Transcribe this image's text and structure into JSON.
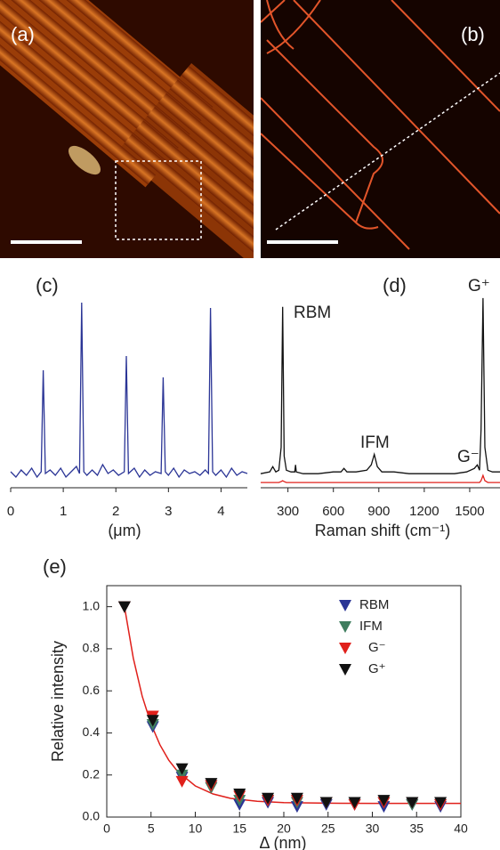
{
  "images": [
    {
      "label": "(a)"
    },
    {
      "label": "(b)"
    }
  ],
  "chart_data": [
    {
      "type": "line",
      "panel": "(c)",
      "xlabel": "(μm)",
      "xlim": [
        0,
        4.5
      ],
      "xticks": [
        0,
        1,
        2,
        3,
        4
      ],
      "ylim": [
        0,
        1.05
      ],
      "x": [
        0,
        0.1,
        0.2,
        0.3,
        0.4,
        0.5,
        0.58,
        0.62,
        0.66,
        0.75,
        0.85,
        0.95,
        1.05,
        1.15,
        1.25,
        1.31,
        1.35,
        1.39,
        1.45,
        1.55,
        1.65,
        1.75,
        1.85,
        1.95,
        2.05,
        2.16,
        2.2,
        2.24,
        2.35,
        2.45,
        2.55,
        2.65,
        2.75,
        2.86,
        2.9,
        2.94,
        3.0,
        3.1,
        3.2,
        3.3,
        3.4,
        3.5,
        3.6,
        3.7,
        3.76,
        3.8,
        3.84,
        3.9,
        4.0,
        4.1,
        4.2,
        4.3,
        4.4,
        4.5
      ],
      "series": [
        {
          "color": "#2b3596",
          "values": [
            0.05,
            0.02,
            0.06,
            0.03,
            0.07,
            0.02,
            0.05,
            0.62,
            0.04,
            0.06,
            0.03,
            0.07,
            0.02,
            0.05,
            0.08,
            0.04,
            1.0,
            0.05,
            0.03,
            0.06,
            0.03,
            0.09,
            0.04,
            0.06,
            0.03,
            0.05,
            0.7,
            0.04,
            0.07,
            0.02,
            0.06,
            0.03,
            0.05,
            0.04,
            0.58,
            0.05,
            0.03,
            0.07,
            0.02,
            0.06,
            0.04,
            0.05,
            0.03,
            0.06,
            0.04,
            0.97,
            0.05,
            0.03,
            0.06,
            0.02,
            0.07,
            0.03,
            0.05,
            0.04
          ]
        }
      ]
    },
    {
      "type": "line",
      "panel": "(d)",
      "xlabel": "Raman shift (cm⁻¹)",
      "xlim": [
        120,
        1700
      ],
      "xticks": [
        300,
        600,
        900,
        1200,
        1500
      ],
      "ylim": [
        -0.03,
        1.1
      ],
      "annotations": [
        "RBM",
        "IFM",
        "G⁻",
        "G⁺"
      ],
      "x": [
        120,
        180,
        200,
        220,
        240,
        255,
        265,
        275,
        290,
        320,
        345,
        350,
        355,
        400,
        500,
        600,
        650,
        670,
        690,
        750,
        820,
        850,
        870,
        890,
        920,
        1000,
        1100,
        1200,
        1300,
        1400,
        1480,
        1530,
        1550,
        1565,
        1575,
        1588,
        1600,
        1620,
        1650,
        1700
      ],
      "series": [
        {
          "color": "#111111",
          "values": [
            0.05,
            0.06,
            0.09,
            0.06,
            0.07,
            0.2,
            1.0,
            0.15,
            0.07,
            0.06,
            0.06,
            0.1,
            0.06,
            0.05,
            0.05,
            0.06,
            0.06,
            0.08,
            0.06,
            0.06,
            0.07,
            0.1,
            0.16,
            0.09,
            0.06,
            0.06,
            0.05,
            0.05,
            0.05,
            0.05,
            0.06,
            0.08,
            0.1,
            0.07,
            0.3,
            1.05,
            0.2,
            0.07,
            0.06,
            0.06
          ]
        },
        {
          "color": "#e0201b",
          "values": [
            0,
            0,
            0,
            0,
            0,
            0.005,
            0.01,
            0.005,
            0,
            0,
            0,
            0,
            0,
            0,
            0,
            0,
            0,
            0,
            0,
            0,
            0,
            0,
            0,
            0,
            0,
            0,
            0,
            0,
            0,
            0,
            0,
            0,
            0,
            0,
            0.01,
            0.04,
            0.01,
            0,
            0,
            0
          ]
        }
      ]
    },
    {
      "type": "scatter",
      "panel": "(e)",
      "xlabel": "Δ (nm)",
      "ylabel": "Relative intensity",
      "xlim": [
        0,
        40
      ],
      "xticks": [
        0,
        5,
        10,
        15,
        20,
        25,
        30,
        35,
        40
      ],
      "ylim": [
        0,
        1.1
      ],
      "yticks": [
        {
          "value": 0,
          "label": "0.0"
        },
        0.2,
        0.4,
        0.6,
        0.8,
        {
          "value": 1,
          "label": "1.0"
        }
      ],
      "x": [
        2,
        5.2,
        8.5,
        11.8,
        15,
        18.2,
        21.5,
        24.8,
        28,
        31.3,
        34.5,
        37.7
      ],
      "series": [
        {
          "name": "RBM",
          "color": "#2b3596",
          "values": [
            1.0,
            0.43,
            0.19,
            0.15,
            0.06,
            0.07,
            0.05,
            0.06,
            0.06,
            0.05,
            0.06,
            0.05
          ]
        },
        {
          "name": "IFM",
          "color": "#3e7d5e",
          "values": [
            1.0,
            0.44,
            0.2,
            0.14,
            0.08,
            0.08,
            0.07,
            0.07,
            0.07,
            0.07,
            0.06,
            0.06
          ]
        },
        {
          "name": "G⁻",
          "color": "#e0201b",
          "values": [
            1.0,
            0.48,
            0.17,
            0.15,
            0.1,
            0.08,
            0.08,
            0.07,
            0.06,
            0.07,
            0.07,
            0.06
          ]
        },
        {
          "name": "G⁺",
          "color": "#111111",
          "values": [
            1.0,
            0.46,
            0.23,
            0.16,
            0.11,
            0.09,
            0.09,
            0.07,
            0.07,
            0.08,
            0.07,
            0.07
          ]
        }
      ],
      "fit": {
        "color": "#e0201b",
        "x": [
          2,
          3,
          4,
          5,
          6,
          7,
          8,
          10,
          12,
          14,
          17,
          20,
          25,
          30,
          35,
          40
        ],
        "values": [
          1.0,
          0.756,
          0.575,
          0.442,
          0.344,
          0.271,
          0.217,
          0.148,
          0.11,
          0.089,
          0.075,
          0.069,
          0.066,
          0.065,
          0.065,
          0.065
        ]
      }
    }
  ]
}
